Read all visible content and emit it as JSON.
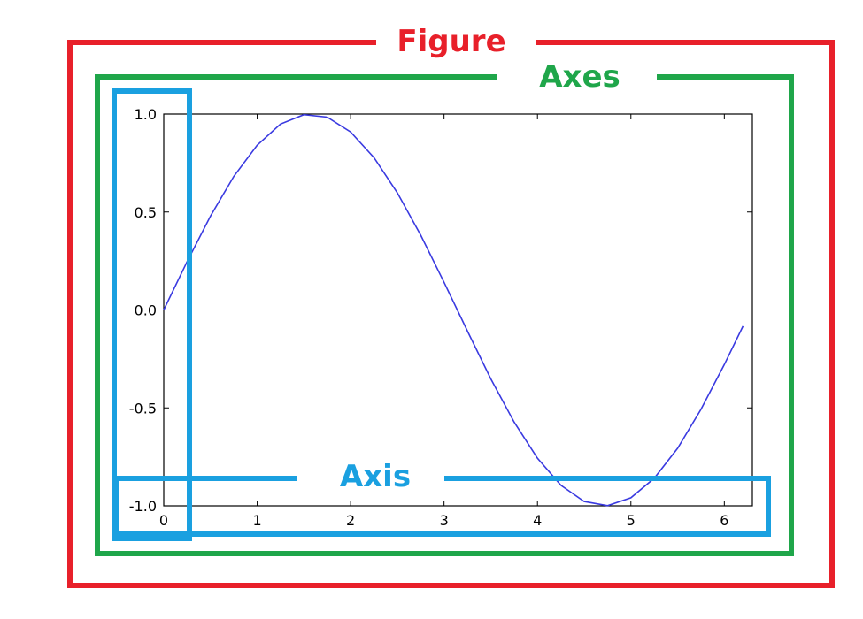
{
  "labels": {
    "figure": "Figure",
    "axes": "Axes",
    "axis": "Axis"
  },
  "colors": {
    "figure": "#e8202a",
    "axes": "#1fa64a",
    "axis": "#1aa0e0",
    "curve": "#3a3ae0"
  },
  "chart_data": {
    "type": "line",
    "series": [
      {
        "function": "sin(x)",
        "x": [
          0,
          0.25,
          0.5,
          0.75,
          1.0,
          1.25,
          1.5,
          1.75,
          2.0,
          2.25,
          2.5,
          2.75,
          3.0,
          3.25,
          3.5,
          3.75,
          4.0,
          4.25,
          4.5,
          4.75,
          5.0,
          5.25,
          5.5,
          5.75,
          6.0,
          6.2
        ],
        "y": [
          0,
          0.247,
          0.479,
          0.682,
          0.841,
          0.949,
          0.997,
          0.984,
          0.909,
          0.778,
          0.598,
          0.382,
          0.141,
          -0.108,
          -0.351,
          -0.572,
          -0.757,
          -0.895,
          -0.978,
          -0.999,
          -0.959,
          -0.859,
          -0.706,
          -0.508,
          -0.279,
          -0.083
        ]
      }
    ],
    "xlim": [
      0,
      6.3
    ],
    "ylim": [
      -1.0,
      1.0
    ],
    "xticks": [
      "0",
      "1",
      "2",
      "3",
      "4",
      "5",
      "6"
    ],
    "yticks": [
      "1.0",
      "0.5",
      "0.0",
      "-0.5",
      "-1.0"
    ],
    "grid": false
  }
}
